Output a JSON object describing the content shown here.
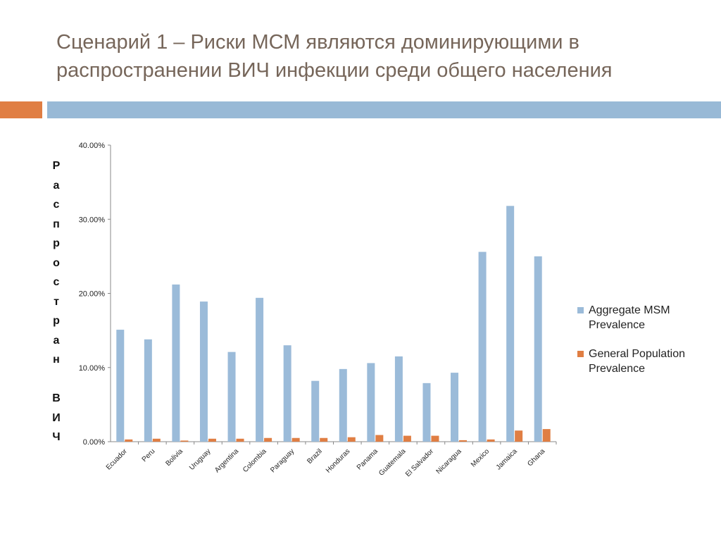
{
  "slide": {
    "title": "Сценарий 1 – Риски МСМ являются доминирующими в распространении ВИЧ инфекции среди общего населения"
  },
  "colors": {
    "accent_orange": "#e07e43",
    "accent_blue": "#98b9d6",
    "series_msm": "#9bbbd9",
    "series_general": "#e07e43"
  },
  "chart_data": {
    "type": "bar",
    "title": "",
    "xlabel": "",
    "ylabel": "Распростран ВИЧ",
    "ylim": [
      0,
      40
    ],
    "yticks": [
      "0.00%",
      "10.00%",
      "20.00%",
      "30.00%",
      "40.00%"
    ],
    "legend_position": "right",
    "categories": [
      "Ecuador",
      "Peru",
      "Bolivia",
      "Uruguay",
      "Argentina",
      "Colombia",
      "Paraguay",
      "Brazil",
      "Honduras",
      "Panama",
      "Guatemala",
      "El Salvador",
      "Nicaragua",
      "Mexico",
      "Jamaica",
      "Ghana"
    ],
    "series": [
      {
        "name": "Aggregate MSM Prevalence",
        "values": [
          15.1,
          13.8,
          21.2,
          18.9,
          12.1,
          19.4,
          13.0,
          8.2,
          9.8,
          10.6,
          11.5,
          7.9,
          9.3,
          25.6,
          31.8,
          25.0
        ]
      },
      {
        "name": "General Population Prevalence",
        "values": [
          0.3,
          0.4,
          0.15,
          0.4,
          0.4,
          0.5,
          0.5,
          0.5,
          0.6,
          0.9,
          0.8,
          0.8,
          0.2,
          0.3,
          1.5,
          1.7
        ]
      }
    ]
  }
}
